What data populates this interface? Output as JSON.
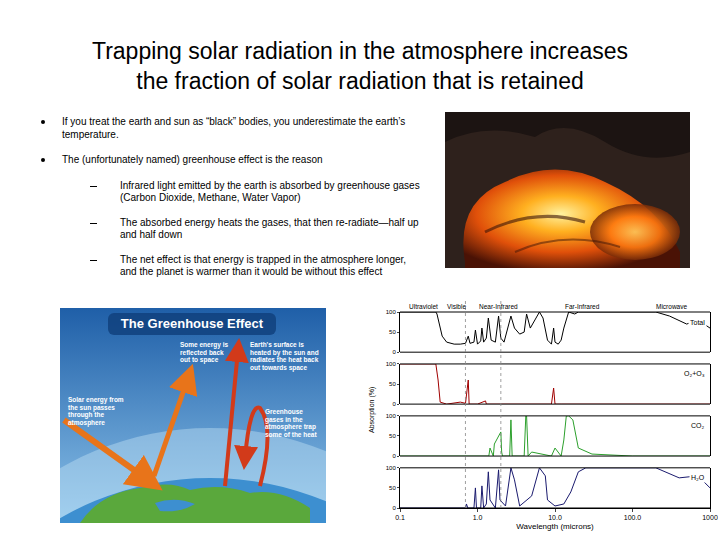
{
  "title": [
    "Trapping solar radiation in the atmosphere increases",
    "the fraction of solar radiation that is retained"
  ],
  "bullets": [
    {
      "text": "If you treat the earth and sun as “black” bodies, you underestimate the earth’s temperature.",
      "sub": []
    },
    {
      "text": "The (unfortunately named) greenhouse effect is the reason",
      "sub": [
        "Infrared light emitted by the earth is absorbed by greenhouse gases (Carbon Dioxide, Methane, Water Vapor)",
        "The absorbed energy heats the gases, that then re-radiate—half up and half down",
        "The net effect is that energy is trapped in the atmosphere longer, and the planet is warmer than it would be without this effect"
      ]
    }
  ],
  "diagram": {
    "title": "The Greenhouse Effect",
    "labels": [
      "Some energy is reflected back out to space",
      "Earth's surface is heated by the sun and radiates the heat back out towards space",
      "Solar energy from the sun passes through the atmosphere",
      "Greenhouse gases in the atmosphere trap some of the heat"
    ]
  },
  "chart_data": {
    "type": "line",
    "log": "x",
    "x_label": "Wavelength (microns)",
    "y_label": "Absorption (%)",
    "xlim": [
      0.1,
      1000
    ],
    "xticks": [
      0.1,
      {
        "value": 1,
        "label": "1.0"
      },
      {
        "value": 10,
        "label": "10.0"
      },
      {
        "value": 100,
        "label": "100.0"
      },
      1000
    ],
    "ylim": [
      0,
      100
    ],
    "yticks": [
      0,
      50,
      100
    ],
    "grid": false,
    "bands": [
      {
        "label": "Ultraviolet",
        "from": 0.1,
        "to": 0.4
      },
      {
        "label": "Visible",
        "from": 0.4,
        "to": 0.7
      },
      {
        "label": "Near-Infrared",
        "from": 0.7,
        "to": 5
      },
      {
        "label": "Far-Infrared",
        "from": 5,
        "to": 100
      },
      {
        "label": "Microwave",
        "from": 100,
        "to": 1000
      }
    ],
    "series": [
      {
        "name": "Total",
        "color": "#000000",
        "x": [
          0.1,
          0.2,
          0.29,
          0.3,
          0.32,
          0.35,
          0.4,
          0.5,
          0.6,
          0.7,
          0.76,
          0.8,
          0.9,
          0.94,
          1.0,
          1.1,
          1.14,
          1.2,
          1.3,
          1.38,
          1.5,
          1.7,
          1.87,
          2.0,
          2.2,
          2.7,
          3.0,
          3.5,
          4.0,
          4.3,
          4.8,
          5.5,
          6.3,
          7.0,
          8.0,
          9.0,
          9.6,
          10.0,
          11.0,
          12.0,
          13.0,
          15.0,
          18.0,
          20.0,
          30.0,
          50.0,
          100.0,
          200.0,
          300.0,
          500.0,
          700.0,
          1000.0
        ],
        "values": [
          100,
          100,
          100,
          95,
          70,
          40,
          25,
          20,
          20,
          22,
          40,
          22,
          25,
          55,
          20,
          28,
          60,
          25,
          35,
          85,
          30,
          25,
          90,
          35,
          25,
          90,
          60,
          45,
          50,
          95,
          60,
          80,
          100,
          85,
          30,
          20,
          60,
          25,
          20,
          30,
          60,
          100,
          95,
          100,
          100,
          100,
          100,
          100,
          90,
          70,
          80,
          60
        ]
      },
      {
        "name": "O₂+O₃",
        "color": "#a00000",
        "x": [
          0.1,
          0.2,
          0.29,
          0.31,
          0.33,
          0.4,
          0.6,
          0.7,
          0.76,
          0.78,
          1.0,
          1.27,
          1.3,
          2.0,
          5.0,
          9.0,
          9.6,
          10.0,
          12,
          100,
          1000
        ],
        "values": [
          100,
          100,
          100,
          60,
          5,
          0,
          5,
          2,
          60,
          0,
          0,
          8,
          0,
          0,
          0,
          0,
          40,
          0,
          0,
          0,
          0
        ]
      },
      {
        "name": "CO₂",
        "color": "#2ca02c",
        "x": [
          0.1,
          1.0,
          1.4,
          1.45,
          1.6,
          1.65,
          2.0,
          2.05,
          2.1,
          2.6,
          2.7,
          2.8,
          4.0,
          4.2,
          4.3,
          4.5,
          5.0,
          9.0,
          10.0,
          12.0,
          13.0,
          14.0,
          15.0,
          17.0,
          20.0,
          30.0,
          100,
          1000
        ],
        "values": [
          0,
          0,
          0,
          20,
          0,
          30,
          60,
          10,
          0,
          0,
          90,
          0,
          0,
          100,
          100,
          0,
          10,
          0,
          20,
          0,
          40,
          100,
          100,
          90,
          20,
          5,
          0,
          0
        ]
      },
      {
        "name": "H₂O",
        "color": "#1a1a6e",
        "x": [
          0.1,
          0.7,
          0.72,
          0.75,
          0.9,
          0.94,
          0.97,
          1.1,
          1.14,
          1.2,
          1.3,
          1.38,
          1.45,
          1.7,
          1.87,
          1.95,
          2.3,
          2.7,
          3.0,
          3.5,
          5.0,
          6.3,
          7.5,
          8.0,
          10.0,
          13.0,
          16.0,
          20.0,
          25.0,
          40.0,
          100.0,
          200.0,
          400.0,
          700.0,
          1000.0
        ],
        "values": [
          0,
          0,
          10,
          0,
          0,
          50,
          0,
          0,
          55,
          0,
          10,
          90,
          20,
          0,
          95,
          20,
          5,
          100,
          70,
          5,
          30,
          100,
          80,
          20,
          5,
          10,
          40,
          90,
          100,
          100,
          100,
          100,
          75,
          80,
          50
        ]
      }
    ]
  }
}
